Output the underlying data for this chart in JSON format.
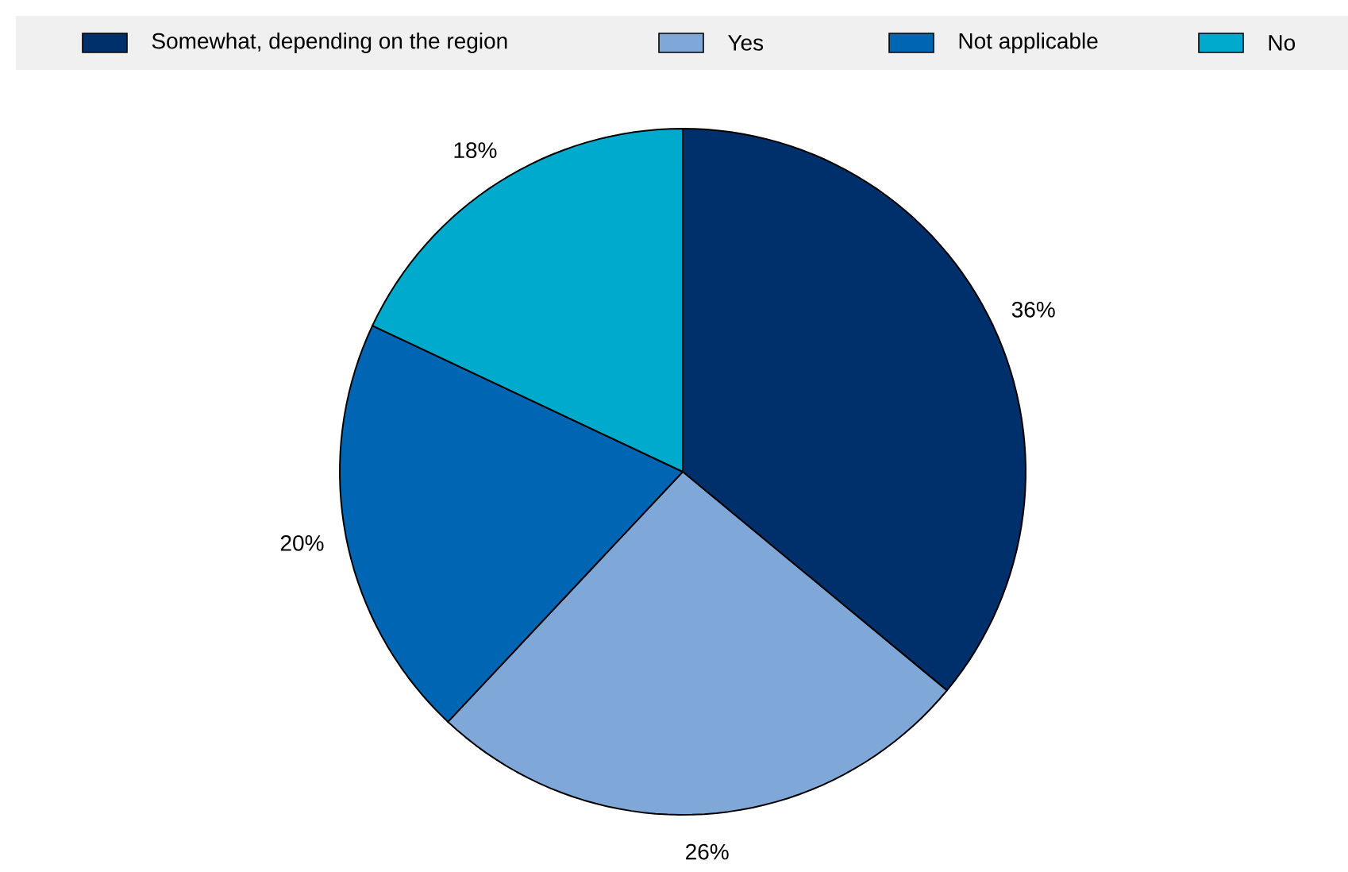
{
  "chart_data": {
    "type": "pie",
    "categories": [
      "Somewhat, depending on the region",
      "Yes",
      "Not applicable",
      "No"
    ],
    "values": [
      36,
      26,
      20,
      18
    ],
    "value_labels": [
      "36%",
      "26%",
      "20%",
      "18%"
    ],
    "colors": [
      "#00306b",
      "#7fa8d9",
      "#0066b3",
      "#00aacc"
    ],
    "legend": "top"
  }
}
